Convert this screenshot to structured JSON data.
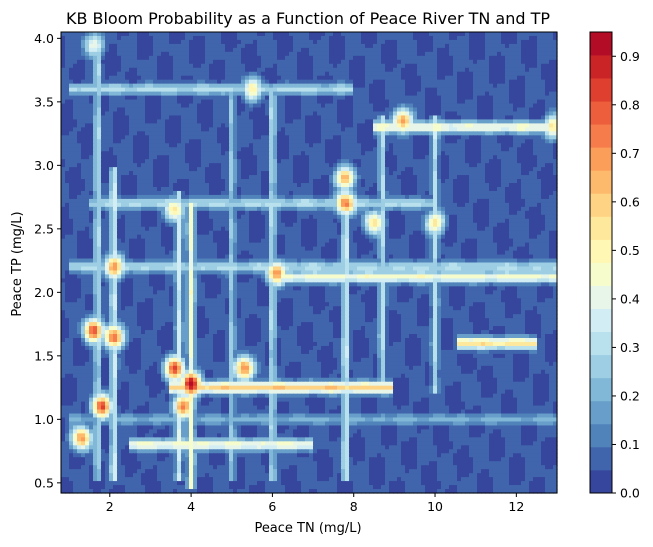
{
  "chart_data": {
    "type": "heatmap",
    "title": "KB Bloom Probability as a Function of Peace River TN and TP",
    "xlabel": "Peace TN (mg/L)",
    "ylabel": "Peace TP (mg/L)",
    "xlim": [
      0.8,
      13.0
    ],
    "ylim": [
      0.42,
      4.05
    ],
    "xticks": [
      2,
      4,
      6,
      8,
      10,
      12
    ],
    "yticks": [
      0.5,
      1.0,
      1.5,
      2.0,
      2.5,
      3.0,
      3.5,
      4.0
    ],
    "colorbar": {
      "range": [
        0.0,
        0.95
      ],
      "ticks": [
        0.0,
        0.1,
        0.2,
        0.3,
        0.4,
        0.5,
        0.6,
        0.7,
        0.8,
        0.9
      ],
      "levels": 20,
      "colormap": "RdYlBu_r"
    },
    "base_probability": 0.05,
    "features": [
      {
        "kind": "ridge",
        "axis": "x",
        "at": 1.7,
        "from": 0.5,
        "to": 4.0,
        "peak": 0.3
      },
      {
        "kind": "ridge",
        "axis": "x",
        "at": 2.1,
        "from": 0.5,
        "to": 3.0,
        "peak": 0.35
      },
      {
        "kind": "ridge",
        "axis": "x",
        "at": 3.7,
        "from": 0.5,
        "to": 2.8,
        "peak": 0.35
      },
      {
        "kind": "ridge",
        "axis": "x",
        "at": 4.0,
        "from": 0.45,
        "to": 2.7,
        "peak": 0.45
      },
      {
        "kind": "ridge",
        "axis": "x",
        "at": 5.0,
        "from": 0.5,
        "to": 3.6,
        "peak": 0.25
      },
      {
        "kind": "ridge",
        "axis": "x",
        "at": 6.0,
        "from": 0.5,
        "to": 3.6,
        "peak": 0.3
      },
      {
        "kind": "ridge",
        "axis": "x",
        "at": 7.8,
        "from": 0.5,
        "to": 3.0,
        "peak": 0.35
      },
      {
        "kind": "ridge",
        "axis": "x",
        "at": 8.7,
        "from": 1.2,
        "to": 3.4,
        "peak": 0.3
      },
      {
        "kind": "ridge",
        "axis": "x",
        "at": 10.0,
        "from": 1.2,
        "to": 3.4,
        "peak": 0.3
      },
      {
        "kind": "ridge",
        "axis": "y",
        "at": 3.6,
        "from": 1.0,
        "to": 8.0,
        "peak": 0.3
      },
      {
        "kind": "ridge",
        "axis": "y",
        "at": 3.3,
        "from": 8.5,
        "to": 13.0,
        "peak": 0.45
      },
      {
        "kind": "ridge",
        "axis": "y",
        "at": 2.7,
        "from": 1.5,
        "to": 10.0,
        "peak": 0.3
      },
      {
        "kind": "ridge",
        "axis": "y",
        "at": 2.2,
        "from": 1.0,
        "to": 13.0,
        "peak": 0.3
      },
      {
        "kind": "ridge",
        "axis": "y",
        "at": 2.12,
        "from": 6.0,
        "to": 13.0,
        "peak": 0.45
      },
      {
        "kind": "ridge",
        "axis": "y",
        "at": 1.6,
        "from": 10.5,
        "to": 12.5,
        "peak": 0.55
      },
      {
        "kind": "ridge",
        "axis": "y",
        "at": 1.25,
        "from": 3.5,
        "to": 9.0,
        "peak": 0.6
      },
      {
        "kind": "ridge",
        "axis": "y",
        "at": 1.0,
        "from": 1.0,
        "to": 13.0,
        "peak": 0.2
      },
      {
        "kind": "ridge",
        "axis": "y",
        "at": 0.8,
        "from": 2.5,
        "to": 7.0,
        "peak": 0.45
      },
      {
        "kind": "hotspot",
        "x": 4.0,
        "y": 1.28,
        "peak": 0.95
      },
      {
        "kind": "hotspot",
        "x": 3.6,
        "y": 1.4,
        "peak": 0.8
      },
      {
        "kind": "hotspot",
        "x": 3.8,
        "y": 1.1,
        "peak": 0.75
      },
      {
        "kind": "hotspot",
        "x": 5.3,
        "y": 1.4,
        "peak": 0.75
      },
      {
        "kind": "hotspot",
        "x": 1.6,
        "y": 1.7,
        "peak": 0.8
      },
      {
        "kind": "hotspot",
        "x": 2.1,
        "y": 1.65,
        "peak": 0.8
      },
      {
        "kind": "hotspot",
        "x": 1.8,
        "y": 1.1,
        "peak": 0.8
      },
      {
        "kind": "hotspot",
        "x": 1.3,
        "y": 0.85,
        "peak": 0.7
      },
      {
        "kind": "hotspot",
        "x": 2.1,
        "y": 2.2,
        "peak": 0.7
      },
      {
        "kind": "hotspot",
        "x": 6.1,
        "y": 2.15,
        "peak": 0.7
      },
      {
        "kind": "hotspot",
        "x": 7.8,
        "y": 2.7,
        "peak": 0.75
      },
      {
        "kind": "hotspot",
        "x": 7.8,
        "y": 2.9,
        "peak": 0.65
      },
      {
        "kind": "hotspot",
        "x": 9.2,
        "y": 3.35,
        "peak": 0.7
      },
      {
        "kind": "hotspot",
        "x": 12.9,
        "y": 3.3,
        "peak": 0.55
      },
      {
        "kind": "hotspot",
        "x": 8.5,
        "y": 2.55,
        "peak": 0.55
      },
      {
        "kind": "hotspot",
        "x": 10.0,
        "y": 2.55,
        "peak": 0.55
      },
      {
        "kind": "hotspot",
        "x": 1.6,
        "y": 3.95,
        "peak": 0.45
      },
      {
        "kind": "hotspot",
        "x": 3.6,
        "y": 2.65,
        "peak": 0.55
      },
      {
        "kind": "hotspot",
        "x": 5.5,
        "y": 3.6,
        "peak": 0.5
      }
    ]
  }
}
